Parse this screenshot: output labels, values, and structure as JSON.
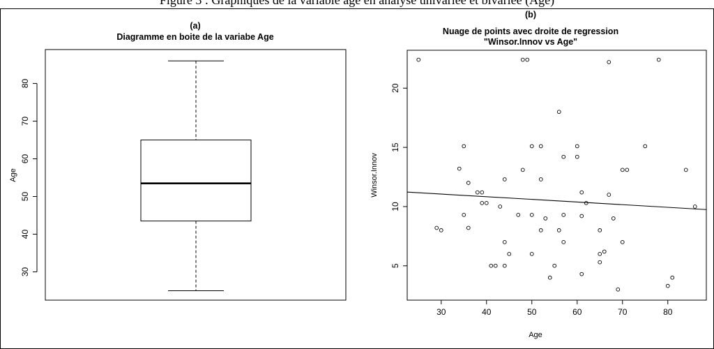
{
  "caption": "Figure 3 : Graphiques de la variable âge en analyse univariée et bivariée (Age)",
  "chart_data": [
    {
      "type": "box",
      "panel_label": "(a)",
      "title": "Diagramme en boite de la variabe Age",
      "ylabel": "Age",
      "xlabel": "",
      "ylim": [
        22.5,
        89
      ],
      "yticks": [
        30,
        40,
        50,
        60,
        70,
        80
      ],
      "box": {
        "min": 25,
        "q1": 43.5,
        "median": 53.5,
        "q3": 65,
        "max": 86
      }
    },
    {
      "type": "scatter",
      "panel_label": "(b)",
      "title": "Nuage de points avec droite de regression",
      "subtitle": "\"Winsor.Innov vs Age\"",
      "xlabel": "Age",
      "ylabel": "Winsor.Innov",
      "xlim": [
        22.5,
        88.5
      ],
      "ylim": [
        2.1,
        23.2
      ],
      "xticks": [
        30,
        40,
        50,
        60,
        70,
        80
      ],
      "yticks": [
        5,
        10,
        15,
        20
      ],
      "regression": {
        "intercept": 11.73,
        "slope": -0.0224
      },
      "points": [
        [
          25,
          22.4
        ],
        [
          48,
          22.4
        ],
        [
          49,
          22.4
        ],
        [
          67,
          22.2
        ],
        [
          78,
          22.4
        ],
        [
          56,
          18.0
        ],
        [
          35,
          15.1
        ],
        [
          50,
          15.1
        ],
        [
          52,
          15.1
        ],
        [
          60,
          15.1
        ],
        [
          75,
          15.1
        ],
        [
          57,
          14.2
        ],
        [
          60,
          14.2
        ],
        [
          34,
          13.2
        ],
        [
          48,
          13.1
        ],
        [
          70,
          13.1
        ],
        [
          71,
          13.1
        ],
        [
          84,
          13.1
        ],
        [
          36,
          12.0
        ],
        [
          44,
          12.3
        ],
        [
          52,
          12.3
        ],
        [
          38,
          11.2
        ],
        [
          39,
          11.2
        ],
        [
          61,
          11.2
        ],
        [
          67,
          11.0
        ],
        [
          39,
          10.3
        ],
        [
          40,
          10.3
        ],
        [
          62,
          10.3
        ],
        [
          43,
          10.0
        ],
        [
          86,
          10.0
        ],
        [
          35,
          9.3
        ],
        [
          47,
          9.3
        ],
        [
          50,
          9.3
        ],
        [
          57,
          9.3
        ],
        [
          53,
          9.0
        ],
        [
          61,
          9.2
        ],
        [
          68,
          9.0
        ],
        [
          29,
          8.2
        ],
        [
          30,
          8.0
        ],
        [
          36,
          8.2
        ],
        [
          52,
          8.0
        ],
        [
          56,
          8.0
        ],
        [
          65,
          8.0
        ],
        [
          44,
          7.0
        ],
        [
          57,
          7.0
        ],
        [
          70,
          7.0
        ],
        [
          45,
          6.0
        ],
        [
          50,
          6.0
        ],
        [
          65,
          6.0
        ],
        [
          66,
          6.2
        ],
        [
          65,
          5.3
        ],
        [
          41,
          5.0
        ],
        [
          42,
          5.0
        ],
        [
          44,
          5.0
        ],
        [
          55,
          5.0
        ],
        [
          54,
          4.0
        ],
        [
          61,
          4.3
        ],
        [
          81,
          4.0
        ],
        [
          80,
          3.3
        ],
        [
          69,
          3.0
        ]
      ]
    }
  ]
}
